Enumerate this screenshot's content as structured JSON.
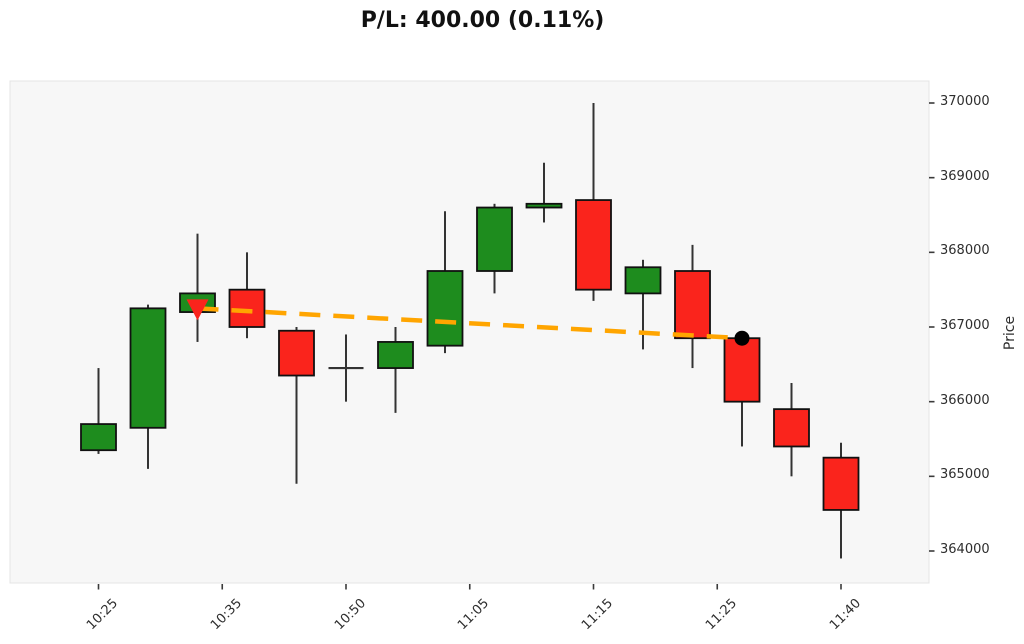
{
  "title": "P/L: 400.00 (0.11%)",
  "chart_data": {
    "type": "candlestick",
    "title": "P/L: 400.00 (0.11%)",
    "xlabel": "",
    "ylabel": "Price",
    "grid": false,
    "y_axis_side": "right",
    "ylim": [
      363570,
      370290
    ],
    "y_ticks": [
      370000,
      369000,
      368000,
      367000,
      366000,
      365000,
      364000
    ],
    "x_ticks": [
      {
        "pos": 0,
        "label": "10:25"
      },
      {
        "pos": 2.5,
        "label": "10:35"
      },
      {
        "pos": 5,
        "label": "10:50"
      },
      {
        "pos": 7.5,
        "label": "11:05"
      },
      {
        "pos": 10,
        "label": "11:15"
      },
      {
        "pos": 12.5,
        "label": "11:25"
      },
      {
        "pos": 15,
        "label": "11:40"
      }
    ],
    "candles": [
      {
        "time": "10:25",
        "open": 365350,
        "high": 366450,
        "low": 365300,
        "close": 365700
      },
      {
        "time": "10:30",
        "open": 365650,
        "high": 367300,
        "low": 365100,
        "close": 367250
      },
      {
        "time": "10:35",
        "open": 367200,
        "high": 368250,
        "low": 366800,
        "close": 367450
      },
      {
        "time": "10:40",
        "open": 367500,
        "high": 368000,
        "low": 366850,
        "close": 367000
      },
      {
        "time": "10:45",
        "open": 366950,
        "high": 367000,
        "low": 364900,
        "close": 366350
      },
      {
        "time": "10:50",
        "open": 366450,
        "high": 366900,
        "low": 366000,
        "close": 366450
      },
      {
        "time": "10:55",
        "open": 366450,
        "high": 367000,
        "low": 365850,
        "close": 366800
      },
      {
        "time": "11:00",
        "open": 366750,
        "high": 368550,
        "low": 366650,
        "close": 367750
      },
      {
        "time": "11:05",
        "open": 367750,
        "high": 368650,
        "low": 367450,
        "close": 368600
      },
      {
        "time": "11:10",
        "open": 368600,
        "high": 369200,
        "low": 368400,
        "close": 368650
      },
      {
        "time": "11:15",
        "open": 368700,
        "high": 370000,
        "low": 367350,
        "close": 367500
      },
      {
        "time": "11:20",
        "open": 367450,
        "high": 367900,
        "low": 366700,
        "close": 367800
      },
      {
        "time": "11:25",
        "open": 367750,
        "high": 368100,
        "low": 366450,
        "close": 366850
      },
      {
        "time": "11:30",
        "open": 366850,
        "high": 366900,
        "low": 365400,
        "close": 366000
      },
      {
        "time": "11:35",
        "open": 365900,
        "high": 366250,
        "low": 365000,
        "close": 365400
      },
      {
        "time": "11:40",
        "open": 365250,
        "high": 365450,
        "low": 363900,
        "close": 364550
      }
    ],
    "trade": {
      "entry": {
        "index": 2,
        "time": "10:35",
        "price": 367250,
        "marker": "triangle-down",
        "color": "#fa241c"
      },
      "exit": {
        "index": 13,
        "time": "11:30",
        "price": 366850,
        "marker": "circle",
        "color": "#000000"
      },
      "pnl": "400.00",
      "pnl_pct": "0.11%",
      "line": {
        "color": "#ffa500",
        "style": "dashed"
      }
    },
    "colors": {
      "up": "#1e8c1e",
      "down": "#fa241c",
      "edge": "#111111",
      "wick": "#333333",
      "trade_line": "#ffa500",
      "entry_marker": "#fa241c",
      "exit_marker": "#000000",
      "plot_bg": "#f7f7f7",
      "plot_border": "#e4e4e4",
      "figure_bg": "#ffffff",
      "tick_text": "#2e2e2e"
    }
  }
}
